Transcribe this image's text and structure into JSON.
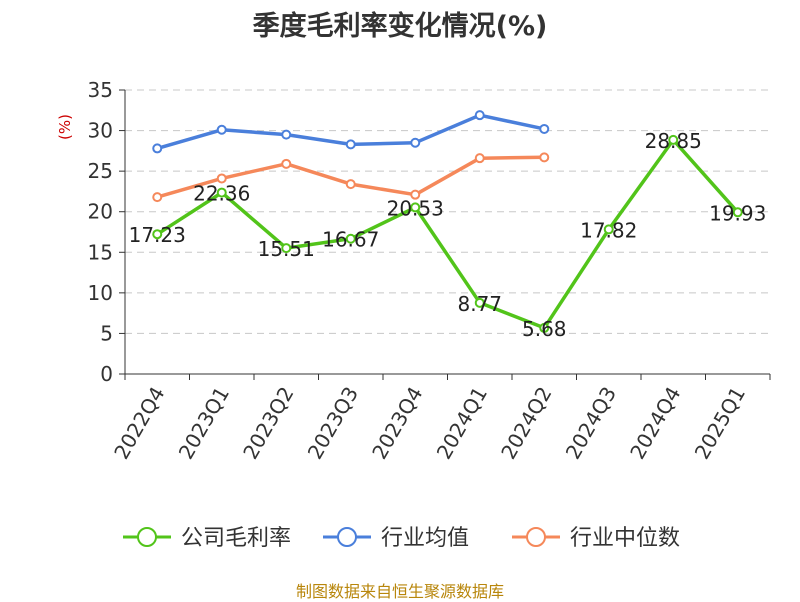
{
  "chart_data": {
    "type": "line",
    "title": "季度毛利率变化情况(%)",
    "ylabel": "(%)",
    "xlabel": "",
    "ylim": [
      0,
      35
    ],
    "yticks": [
      0,
      5,
      10,
      15,
      20,
      25,
      30,
      35
    ],
    "grid": true,
    "legend_position": "bottom",
    "categories": [
      "2022Q4",
      "2023Q1",
      "2023Q2",
      "2023Q3",
      "2023Q4",
      "2024Q1",
      "2024Q2",
      "2024Q3",
      "2024Q4",
      "2025Q1"
    ],
    "series": [
      {
        "name": "公司毛利率",
        "color": "#52c41a",
        "values": [
          17.23,
          22.36,
          15.51,
          16.67,
          20.53,
          8.77,
          5.68,
          17.82,
          28.85,
          19.93
        ],
        "value_labels": [
          "17.23",
          "22.36",
          "15.51",
          "16.67",
          "20.53",
          "8.77",
          "5.68",
          "17.82",
          "28.85",
          "19.93"
        ]
      },
      {
        "name": "行业均值",
        "color": "#4a7fdb",
        "values": [
          27.8,
          30.1,
          29.5,
          28.3,
          28.5,
          31.9,
          30.2,
          null,
          null,
          null
        ]
      },
      {
        "name": "行业中位数",
        "color": "#f5885a",
        "values": [
          21.8,
          24.1,
          25.9,
          23.4,
          22.1,
          26.6,
          26.7,
          null,
          null,
          null
        ]
      }
    ]
  },
  "source_note": "制图数据来自恒生聚源数据库"
}
